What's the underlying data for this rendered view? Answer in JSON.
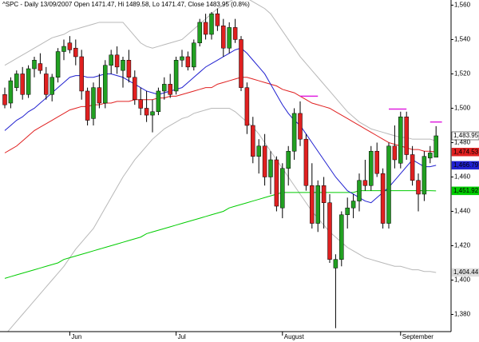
{
  "chart_data": {
    "type": "candlestick",
    "title": "^SPC - Daily 13/09/2007 Open 1471.47, Hi 1489.58, Lo 1471.47, Close 1483.95 (0.8%)",
    "categories": [
      null,
      null,
      null,
      null,
      null,
      null,
      null,
      null,
      null,
      null,
      null,
      "Jun",
      null,
      null,
      null,
      null,
      null,
      null,
      null,
      null,
      null,
      null,
      null,
      null,
      null,
      null,
      null,
      null,
      null,
      "Jul",
      null,
      null,
      null,
      null,
      null,
      null,
      null,
      null,
      null,
      null,
      null,
      null,
      null,
      null,
      null,
      null,
      null,
      "August",
      null,
      null,
      null,
      null,
      null,
      null,
      null,
      null,
      null,
      null,
      null,
      null,
      null,
      null,
      null,
      null,
      null,
      null,
      null,
      "September",
      null,
      null,
      null,
      null,
      null,
      null
    ],
    "open": [
      1508,
      1503,
      1512,
      1520,
      1508,
      1523,
      1526,
      1520,
      1508,
      1518,
      1533,
      1538,
      1535,
      1530,
      1510,
      1494,
      1512,
      1503,
      1525,
      1531,
      1522,
      1528,
      1518,
      1505,
      1500,
      1496,
      1498,
      1510,
      1514,
      1510,
      1528,
      1530,
      1524,
      1538,
      1550,
      1543,
      1555,
      1548,
      1535,
      1547,
      1540,
      1512,
      1490,
      1472,
      1478,
      1460,
      1470,
      1442,
      1465,
      1475,
      1497,
      1482,
      1455,
      1433,
      1455,
      1445,
      1407,
      1412,
      1438,
      1442,
      1446,
      1458,
      1455,
      1475,
      1462,
      1433,
      1478,
      1468,
      1495,
      1473,
      1458,
      1450,
      1471,
      1471.47
    ],
    "high": [
      1512,
      1518,
      1522,
      1524,
      1525,
      1530,
      1532,
      1524,
      1520,
      1535,
      1540,
      1542,
      1540,
      1534,
      1512,
      1515,
      1520,
      1528,
      1534,
      1536,
      1530,
      1534,
      1522,
      1512,
      1510,
      1505,
      1512,
      1518,
      1520,
      1530,
      1534,
      1533,
      1540,
      1552,
      1555,
      1556,
      1558,
      1552,
      1550,
      1552,
      1542,
      1515,
      1495,
      1482,
      1485,
      1475,
      1472,
      1468,
      1478,
      1500,
      1504,
      1485,
      1468,
      1458,
      1460,
      1450,
      1415,
      1440,
      1448,
      1450,
      1462,
      1470,
      1478,
      1480,
      1465,
      1480,
      1490,
      1498,
      1498,
      1478,
      1462,
      1475,
      1478,
      1489.58
    ],
    "low": [
      1500,
      1500,
      1510,
      1505,
      1506,
      1518,
      1520,
      1505,
      1504,
      1515,
      1528,
      1532,
      1525,
      1505,
      1490,
      1490,
      1500,
      1500,
      1520,
      1520,
      1512,
      1515,
      1502,
      1496,
      1492,
      1486,
      1496,
      1505,
      1506,
      1508,
      1524,
      1522,
      1522,
      1536,
      1540,
      1540,
      1545,
      1530,
      1532,
      1538,
      1510,
      1485,
      1468,
      1462,
      1455,
      1450,
      1440,
      1436,
      1455,
      1470,
      1478,
      1452,
      1430,
      1428,
      1430,
      1410,
      1372,
      1408,
      1430,
      1436,
      1440,
      1452,
      1452,
      1460,
      1430,
      1430,
      1465,
      1465,
      1470,
      1455,
      1440,
      1446,
      1468,
      1471.47
    ],
    "close": [
      1502,
      1516,
      1520,
      1508,
      1523,
      1528,
      1522,
      1508,
      1518,
      1533,
      1536,
      1534,
      1530,
      1510,
      1493,
      1512,
      1503,
      1525,
      1531,
      1524,
      1528,
      1518,
      1505,
      1500,
      1496,
      1498,
      1510,
      1514,
      1508,
      1528,
      1530,
      1524,
      1538,
      1550,
      1543,
      1555,
      1548,
      1535,
      1547,
      1540,
      1512,
      1490,
      1472,
      1478,
      1460,
      1470,
      1443,
      1465,
      1475,
      1497,
      1482,
      1455,
      1433,
      1455,
      1445,
      1412,
      1412,
      1438,
      1442,
      1446,
      1458,
      1455,
      1475,
      1462,
      1433,
      1478,
      1470,
      1495,
      1473,
      1458,
      1450,
      1472,
      1474,
      1483.95
    ],
    "close_label": "1,483.95",
    "up_color": "#22a022",
    "down_color": "#e02020",
    "lines": [
      {
        "color": "#b8b8b8",
        "values": [
          1525,
          1527,
          1529,
          1531,
          1533,
          1535,
          1537,
          1539,
          1541,
          1542,
          1543,
          1545,
          1546,
          1547,
          1548,
          1549,
          1550,
          1550,
          1550,
          1550,
          1550,
          1546,
          1542,
          1538,
          1536,
          1535,
          1536,
          1537,
          1538,
          1539,
          1540,
          1543,
          1546,
          1549,
          1552,
          1555,
          1558,
          1560,
          1562,
          1564,
          1565,
          1564,
          1562,
          1560,
          1558,
          1555,
          1550,
          1545,
          1540,
          1535,
          1530,
          1526,
          1522,
          1518,
          1514,
          1510,
          1506,
          1502,
          1498,
          1495,
          1492,
          1490,
          1488,
          1487,
          1486,
          1485,
          1484,
          1483,
          1483,
          1482,
          1482,
          1482,
          1482,
          1481
        ]
      },
      {
        "color": "#b8b8b8",
        "values": [
          1368,
          1372,
          1376,
          1380,
          1384,
          1388,
          1392,
          1396,
          1400,
          1404,
          1408,
          1413,
          1418,
          1422,
          1426,
          1430,
          1436,
          1442,
          1448,
          1454,
          1460,
          1465,
          1470,
          1474,
          1478,
          1482,
          1485,
          1488,
          1490,
          1492,
          1494,
          1495,
          1497,
          1498,
          1499,
          1500,
          1500,
          1500,
          1500,
          1498,
          1495,
          1492,
          1489,
          1485,
          1480,
          1475,
          1470,
          1465,
          1460,
          1455,
          1450,
          1445,
          1440,
          1436,
          1432,
          1428,
          1425,
          1422,
          1419,
          1417,
          1415,
          1413,
          1412,
          1411,
          1410,
          1409,
          1408,
          1408,
          1407,
          1406,
          1406,
          1405,
          1405,
          1404.44
        ],
        "last_label": "1,404.44"
      },
      {
        "color": "#00cc00",
        "values": [
          1401,
          1402,
          1403,
          1404,
          1405,
          1406,
          1407,
          1408,
          1409,
          1410,
          1412,
          1413,
          1414,
          1415,
          1416,
          1417,
          1418,
          1419,
          1420,
          1421,
          1422,
          1423,
          1424,
          1425,
          1427,
          1428,
          1429,
          1430,
          1431,
          1432,
          1433,
          1434,
          1435,
          1436,
          1437,
          1438,
          1439,
          1440,
          1442,
          1443,
          1444,
          1445,
          1446,
          1447,
          1448,
          1449,
          1450,
          1451,
          1451,
          1451,
          1451,
          1451,
          1451,
          1451,
          1451,
          1451,
          1451,
          1451,
          1451,
          1451,
          1452,
          1452,
          1452,
          1452,
          1452,
          1452,
          1452,
          1452,
          1452,
          1452,
          1452,
          1452,
          1452,
          1451.92
        ],
        "last_label": "1,451.92"
      },
      {
        "color": "#e02020",
        "values": [
          1474,
          1476,
          1478,
          1481,
          1484,
          1487,
          1489,
          1491,
          1493,
          1495,
          1497,
          1499,
          1500,
          1501,
          1501,
          1502,
          1502,
          1503,
          1503,
          1504,
          1504,
          1504,
          1505,
          1505,
          1505,
          1505,
          1506,
          1506,
          1507,
          1507,
          1508,
          1509,
          1510,
          1511,
          1512,
          1512,
          1514,
          1515,
          1516,
          1517,
          1518,
          1518,
          1517,
          1516,
          1515,
          1514,
          1513,
          1511,
          1510,
          1509,
          1507,
          1505,
          1503,
          1502,
          1501,
          1500,
          1498,
          1496,
          1494,
          1492,
          1490,
          1488,
          1486,
          1484,
          1482,
          1480,
          1479,
          1478,
          1477,
          1476,
          1476,
          1475,
          1475,
          1474.53
        ],
        "last_label": "1,474.53"
      },
      {
        "color": "#2020d0",
        "values": [
          1487,
          1490,
          1493,
          1495,
          1498,
          1500,
          1503,
          1506,
          1509,
          1512,
          1515,
          1518,
          1519,
          1519,
          1518,
          1518,
          1519,
          1520,
          1520,
          1519,
          1518,
          1516,
          1514,
          1512,
          1510,
          1509,
          1508,
          1509,
          1510,
          1511,
          1512,
          1515,
          1518,
          1521,
          1524,
          1526,
          1528,
          1530,
          1532,
          1534,
          1535,
          1532,
          1528,
          1524,
          1520,
          1514,
          1508,
          1502,
          1497,
          1493,
          1490,
          1485,
          1480,
          1475,
          1470,
          1465,
          1460,
          1456,
          1452,
          1450,
          1448,
          1446,
          1445,
          1448,
          1451,
          1454,
          1458,
          1462,
          1466,
          1470,
          1468,
          1466,
          1466,
          1466.79
        ],
        "last_label": "1,466.79"
      }
    ],
    "levels": [
      {
        "value": 1507,
        "from": 50,
        "to": 53
      },
      {
        "value": 1499.5,
        "from": 65,
        "to": 68
      },
      {
        "value": 1492,
        "from": 72,
        "to": 74
      }
    ],
    "level_color": "#e020e0",
    "ylim": [
      1370,
      1563
    ],
    "yticks": [
      {
        "value": 1380,
        "label": "1,380"
      },
      {
        "value": 1400,
        "label": "1,400"
      },
      {
        "value": 1420,
        "label": "1,420"
      },
      {
        "value": 1440,
        "label": "1,440"
      },
      {
        "value": 1460,
        "label": "1,460"
      },
      {
        "value": 1480,
        "label": "1,480"
      },
      {
        "value": 1500,
        "label": "1,500"
      },
      {
        "value": 1520,
        "label": "1,520"
      },
      {
        "value": 1540,
        "label": "1,540"
      },
      {
        "value": 1560,
        "label": "1,560"
      }
    ]
  }
}
